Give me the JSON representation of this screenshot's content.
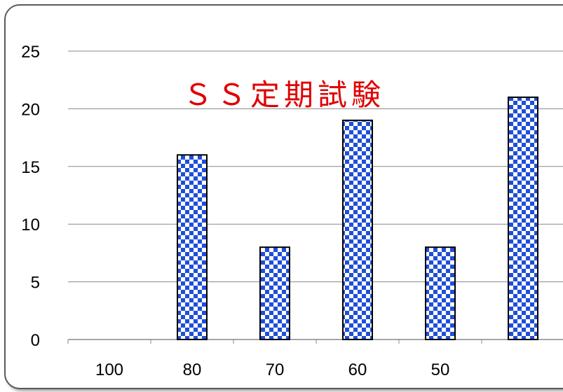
{
  "chart_data": {
    "type": "bar",
    "title": "ＳＳ定期試験",
    "categories": [
      "100",
      "80",
      "70",
      "60",
      "50",
      ""
    ],
    "values": [
      0,
      16,
      8,
      19,
      8,
      21
    ],
    "ylim": [
      0,
      25
    ],
    "yticks": [
      "0",
      "5",
      "10",
      "15",
      "20",
      "25"
    ],
    "xlabel": "",
    "ylabel": "",
    "grid": "horizontal",
    "colors": {
      "bar": "#1f4fd8",
      "bar_alt": "#ffffff",
      "bar_outline": "#000000",
      "title": "#e00000",
      "grid": "#888888"
    }
  }
}
